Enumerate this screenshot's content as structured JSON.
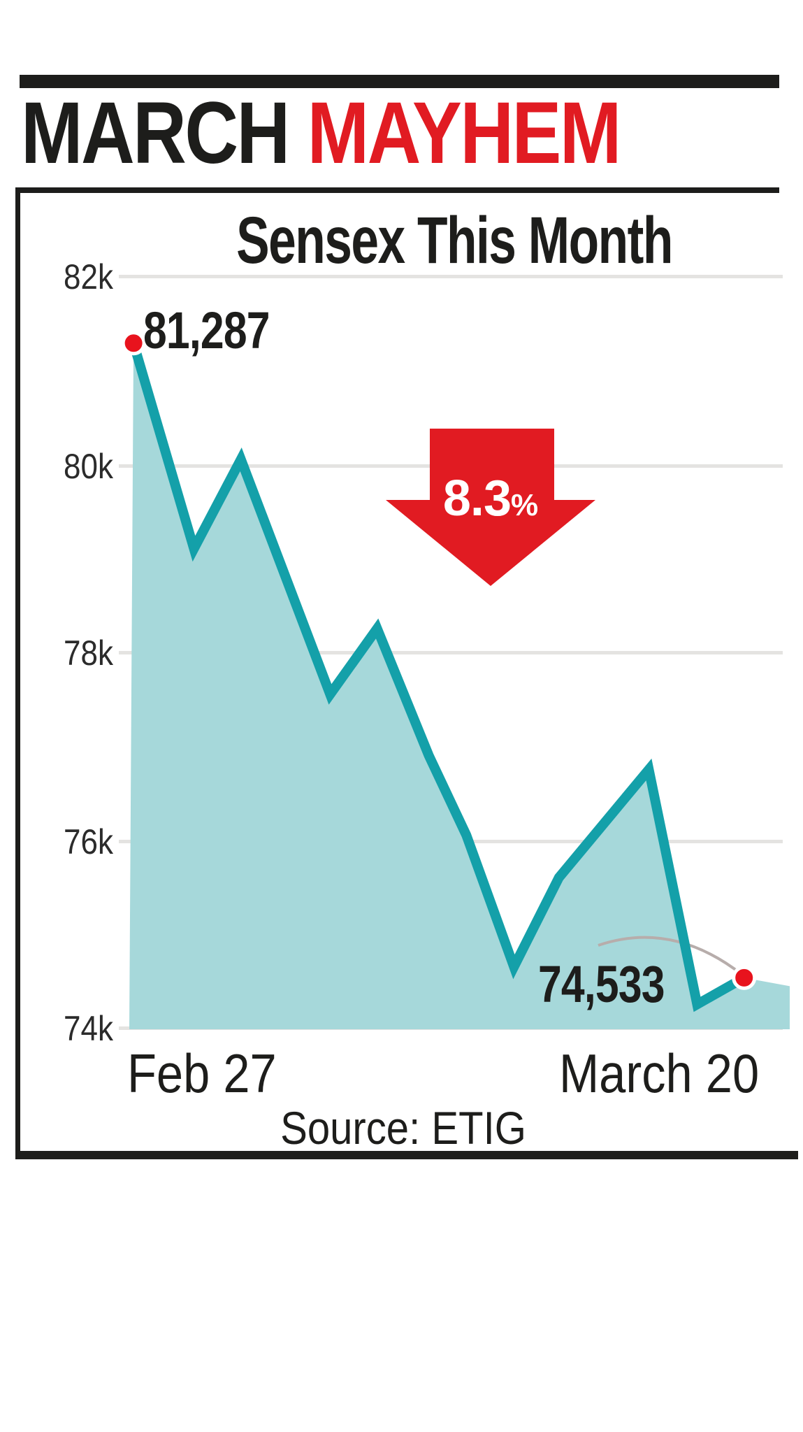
{
  "masthead": {
    "word_black": "MARCH",
    "word_red": "MAYHEM"
  },
  "chart_data": {
    "type": "area",
    "title": "Sensex This Month",
    "y_tick_labels": [
      "82k",
      "80k",
      "78k",
      "76k",
      "74k"
    ],
    "x_axis_labels": [
      "Feb 27",
      "March 20"
    ],
    "ylim": [
      74000,
      82000
    ],
    "grid": "horizontal",
    "series": [
      {
        "name": "Sensex",
        "x_frac": [
          0.022,
          0.112,
          0.182,
          0.315,
          0.385,
          0.462,
          0.518,
          0.589,
          0.656,
          0.79,
          0.862,
          0.932
        ],
        "values": [
          81287,
          79100,
          80050,
          77550,
          78250,
          76900,
          76050,
          74650,
          75600,
          76750,
          74250,
          74533
        ]
      }
    ],
    "annotations": {
      "start_value_label": "81,287",
      "end_value_label": "74,533",
      "change_pct_value": "8.3",
      "change_pct_sign": "%",
      "change_direction": "down"
    },
    "source": "Source: ETIG",
    "colors": {
      "line": "#14a0a9",
      "fill": "#a6d8da",
      "marker": "#e8131d",
      "arrow": "#e11b22",
      "headline_red": "#e11b22",
      "ink": "#1d1d1b",
      "gridline": "#e4e3e1",
      "swash": "#b7adab"
    }
  }
}
